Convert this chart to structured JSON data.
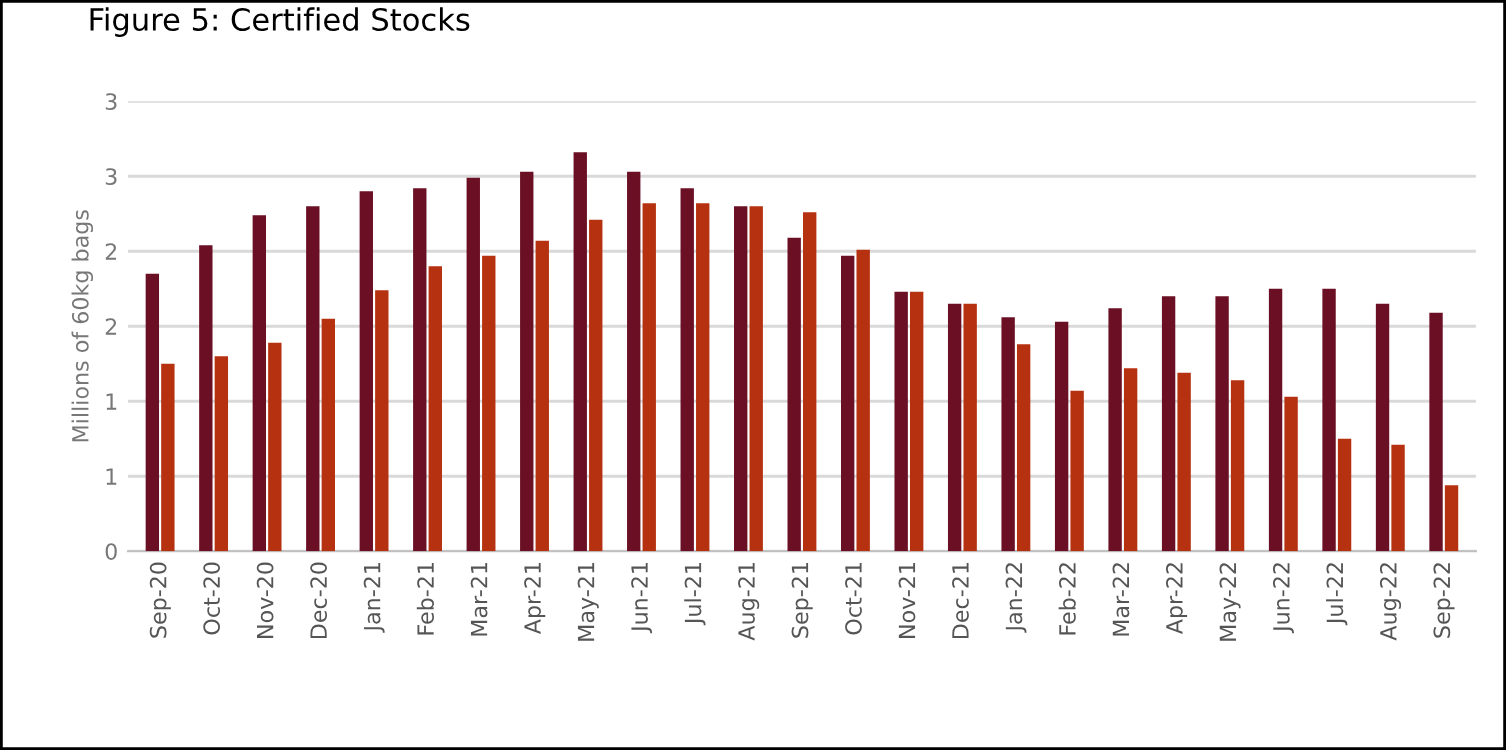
{
  "chart_data": {
    "type": "bar",
    "title": "Figure 5: Certified Stocks",
    "ylabel": "Millions of 60kg bags",
    "categories": [
      "Sep-20",
      "Oct-20",
      "Nov-20",
      "Dec-20",
      "Jan-21",
      "Feb-21",
      "Mar-21",
      "Apr-21",
      "May-21",
      "Jun-21",
      "Jul-21",
      "Aug-21",
      "Sep-21",
      "Oct-21",
      "Nov-21",
      "Dec-21",
      "Jan-22",
      "Feb-22",
      "Mar-22",
      "Apr-22",
      "May-22",
      "Jun-22",
      "Jul-22",
      "Aug-22",
      "Sep-22"
    ],
    "series": [
      {
        "color": "#6b0f24",
        "values": [
          1.85,
          2.04,
          2.24,
          2.3,
          2.4,
          2.42,
          2.49,
          2.53,
          2.66,
          2.53,
          2.42,
          2.3,
          2.09,
          1.97,
          1.73,
          1.65,
          1.56,
          1.53,
          1.62,
          1.7,
          1.7,
          1.75,
          1.75,
          1.65,
          1.59
        ]
      },
      {
        "color": "#b5310f",
        "values": [
          1.25,
          1.3,
          1.39,
          1.55,
          1.74,
          1.9,
          1.97,
          2.07,
          2.21,
          2.32,
          2.32,
          2.3,
          2.26,
          2.01,
          1.73,
          1.65,
          1.38,
          1.07,
          1.22,
          1.19,
          1.14,
          1.03,
          0.75,
          0.71,
          0.44
        ]
      }
    ],
    "ylim": [
      0,
      3
    ],
    "yticks": [
      0,
      {
        "value": 0.5,
        "label": "1"
      },
      1,
      {
        "value": 1.5,
        "label": "2"
      },
      2,
      {
        "value": 2.5,
        "label": "3"
      },
      3
    ],
    "grid": "y"
  }
}
